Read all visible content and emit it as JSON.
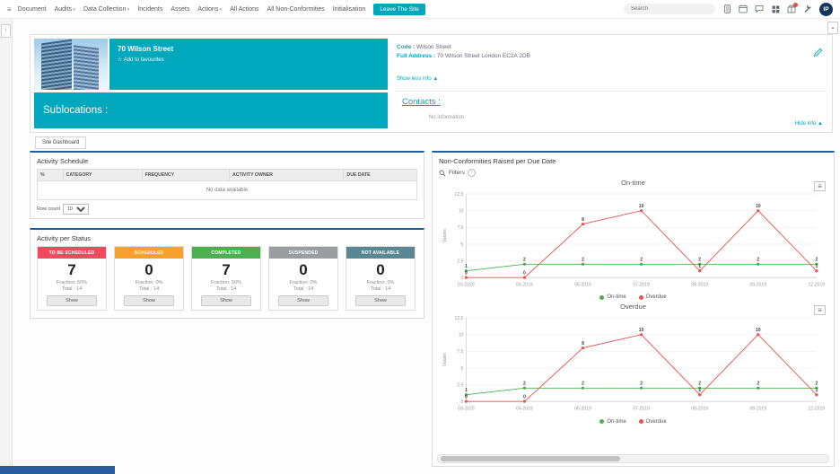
{
  "topnav": {
    "menu": [
      {
        "label": "Document",
        "caret": false
      },
      {
        "label": "Audits",
        "caret": true
      },
      {
        "label": "Data Collection",
        "caret": true
      },
      {
        "label": "Incidents",
        "caret": false
      },
      {
        "label": "Assets",
        "caret": false
      },
      {
        "label": "Actions",
        "caret": true
      },
      {
        "label": "All Actions",
        "caret": false
      },
      {
        "label": "All Non-Conformities",
        "caret": false
      },
      {
        "label": "Initialisation",
        "caret": false
      }
    ],
    "leave_site_button": "Leave The Site",
    "search_placeholder": "Search",
    "icons": [
      "document",
      "calendar",
      "chat",
      "apps",
      "gift-with-badge",
      "wrench"
    ],
    "avatar_initials": "IP"
  },
  "site": {
    "name": "70 Wilson Street",
    "favourite_star": "☆",
    "favourite": "Add to favourites",
    "code_label": "Code :",
    "code_value": "Wilson Street",
    "address_label": "Full Address :",
    "address_value": "70 Wilson Street London EC2A 2DB",
    "show_less": "Show less info ▲",
    "sublocations_label": "Sublocations :",
    "contacts_label": "Contacts :",
    "no_information": "No information",
    "hide_info": "Hide info ▲"
  },
  "tabs": {
    "site_dashboard": "Site Dashboard"
  },
  "activity_schedule": {
    "title": "Activity Schedule",
    "columns": [
      "%",
      "CATEGORY",
      "FREQUENCY",
      "ACTIVITY OWNER",
      "DUE DATE"
    ],
    "empty": "No data available",
    "row_count_label": "Row count",
    "row_count_value": "10"
  },
  "activity_status": {
    "title": "Activity per Status",
    "cards": [
      {
        "label": "TO BE SCHEDULED",
        "value": "7",
        "fraction": "Fraction: 50%",
        "total": "Total : 14",
        "show": "Show",
        "color": "#ee4b5e"
      },
      {
        "label": "SCHEDULED",
        "value": "0",
        "fraction": "Fraction: 0%",
        "total": "Total : 14",
        "show": "Show",
        "color": "#f6a02d"
      },
      {
        "label": "COMPLETED",
        "value": "7",
        "fraction": "Fraction: 50%",
        "total": "Total : 14",
        "show": "Show",
        "color": "#4caf50"
      },
      {
        "label": "SUSPENDED",
        "value": "0",
        "fraction": "Fraction: 0%",
        "total": "Total : 14",
        "show": "Show",
        "color": "#9a9ea1"
      },
      {
        "label": "NOT AVAILABLE",
        "value": "0",
        "fraction": "Fraction: 0%",
        "total": "Total : 14",
        "show": "Show",
        "color": "#5a8794"
      }
    ]
  },
  "nonconformities": {
    "title": "Non-Conformities Raised per Due Date",
    "filters_label": "Filters"
  },
  "chart_data": [
    {
      "type": "line",
      "title": "On-time",
      "x": [
        "03-2020",
        "04-2019",
        "06-2019",
        "07-2019",
        "08-2019",
        "09-2019",
        "12-2019"
      ],
      "series": [
        {
          "name": "On-time",
          "color": "#4caf50",
          "values": [
            1,
            2,
            2,
            2,
            2,
            2,
            2
          ]
        },
        {
          "name": "Overdue",
          "color": "#e8534f",
          "values": [
            0,
            0,
            8,
            10,
            1,
            10,
            1
          ]
        }
      ],
      "ylabel": "Values",
      "ylim": [
        0,
        12.5
      ],
      "yticks": [
        0,
        2.5,
        5,
        7.5,
        10,
        12.5
      ],
      "grid": true,
      "legend_position": "bottom"
    },
    {
      "type": "line",
      "title": "Overdue",
      "x": [
        "03-2020",
        "04-2019",
        "06-2019",
        "07-2019",
        "08-2019",
        "09-2019",
        "12-2019"
      ],
      "series": [
        {
          "name": "On-time",
          "color": "#4caf50",
          "values": [
            1,
            2,
            2,
            2,
            2,
            2,
            2
          ]
        },
        {
          "name": "Overdue",
          "color": "#e8534f",
          "values": [
            0,
            0,
            8,
            10,
            1,
            10,
            1
          ]
        }
      ],
      "ylabel": "Values",
      "ylim": [
        0,
        12.5
      ],
      "yticks": [
        0,
        2.5,
        5,
        7.5,
        10,
        12.5
      ],
      "grid": true,
      "legend_position": "bottom"
    }
  ]
}
